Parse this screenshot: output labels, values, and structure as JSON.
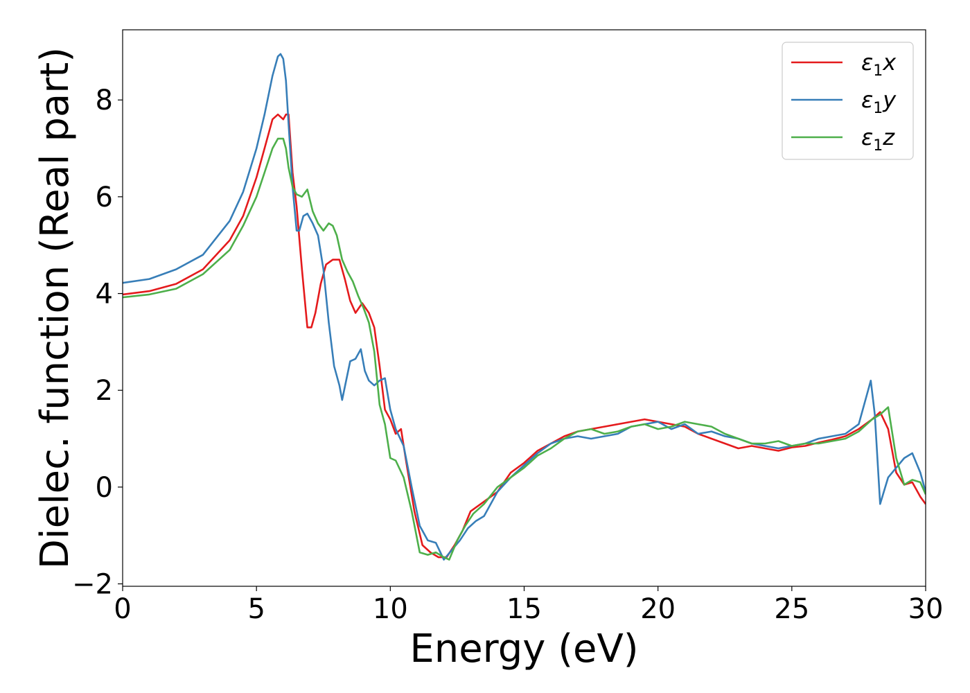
{
  "chart_data": {
    "type": "line",
    "xlabel": "Energy (eV)",
    "ylabel": "Dielec. function (Real part)",
    "xlim": [
      0,
      30
    ],
    "ylim": [
      -2.05,
      9.45
    ],
    "xticks": [
      0,
      5,
      10,
      15,
      20,
      25,
      30
    ],
    "xtick_labels": [
      "0",
      "5",
      "10",
      "15",
      "20",
      "25",
      "30"
    ],
    "yticks": [
      -2,
      0,
      2,
      4,
      6,
      8
    ],
    "ytick_labels": [
      "−2",
      "0",
      "2",
      "4",
      "6",
      "8"
    ],
    "grid": false,
    "legend_position": "top-right",
    "series": [
      {
        "name": "ε1x",
        "legend_main": "ε",
        "legend_sub": "1",
        "legend_var": "x",
        "color": "#e41a1c",
        "x": [
          0,
          1,
          2,
          3,
          4,
          4.5,
          5,
          5.3,
          5.6,
          5.8,
          6.0,
          6.1,
          6.2,
          6.35,
          6.5,
          6.7,
          6.9,
          7.05,
          7.2,
          7.4,
          7.6,
          7.85,
          8.1,
          8.3,
          8.5,
          8.7,
          8.95,
          9.2,
          9.4,
          9.6,
          9.8,
          10.0,
          10.2,
          10.4,
          10.6,
          10.9,
          11.2,
          11.5,
          11.8,
          12.1,
          12.4,
          12.7,
          13.0,
          13.5,
          14.0,
          14.5,
          15.0,
          15.5,
          16.0,
          16.5,
          17.0,
          17.5,
          18.0,
          18.5,
          19.0,
          19.5,
          20.0,
          20.5,
          21.0,
          21.5,
          22.0,
          22.5,
          23.0,
          23.5,
          24.0,
          24.5,
          25.0,
          25.5,
          26.0,
          26.5,
          27.0,
          27.5,
          28.0,
          28.3,
          28.6,
          28.9,
          29.2,
          29.5,
          29.8,
          30.0
        ],
        "y": [
          3.98,
          4.05,
          4.2,
          4.5,
          5.1,
          5.6,
          6.4,
          7.0,
          7.6,
          7.7,
          7.6,
          7.7,
          7.7,
          6.5,
          5.8,
          4.5,
          3.3,
          3.3,
          3.6,
          4.2,
          4.6,
          4.7,
          4.7,
          4.3,
          3.85,
          3.6,
          3.8,
          3.6,
          3.3,
          2.5,
          1.6,
          1.4,
          1.1,
          1.2,
          0.5,
          -0.5,
          -1.2,
          -1.35,
          -1.45,
          -1.45,
          -1.2,
          -0.9,
          -0.5,
          -0.3,
          -0.1,
          0.3,
          0.5,
          0.75,
          0.9,
          1.05,
          1.15,
          1.2,
          1.25,
          1.3,
          1.35,
          1.4,
          1.35,
          1.3,
          1.25,
          1.1,
          1.0,
          0.9,
          0.8,
          0.85,
          0.8,
          0.75,
          0.82,
          0.85,
          0.92,
          0.98,
          1.05,
          1.2,
          1.4,
          1.55,
          1.2,
          0.3,
          0.05,
          0.1,
          -0.2,
          -0.35
        ]
      },
      {
        "name": "ε1y",
        "legend_main": "ε",
        "legend_sub": "1",
        "legend_var": "y",
        "color": "#377eb8",
        "x": [
          0,
          1,
          2,
          3,
          4,
          4.5,
          5,
          5.3,
          5.6,
          5.8,
          5.9,
          6.0,
          6.1,
          6.2,
          6.35,
          6.5,
          6.6,
          6.75,
          6.9,
          7.1,
          7.3,
          7.5,
          7.7,
          7.9,
          8.1,
          8.2,
          8.35,
          8.5,
          8.7,
          8.9,
          9.05,
          9.2,
          9.4,
          9.6,
          9.8,
          10.0,
          10.2,
          10.5,
          10.8,
          11.1,
          11.4,
          11.7,
          12.0,
          12.3,
          12.6,
          12.9,
          13.2,
          13.5,
          14.0,
          14.5,
          15.0,
          15.5,
          16.0,
          16.5,
          17.0,
          17.5,
          18.0,
          18.5,
          19.0,
          19.5,
          20.0,
          20.5,
          21.0,
          21.5,
          22.0,
          22.5,
          23.0,
          23.5,
          24.0,
          24.5,
          25.0,
          25.5,
          26.0,
          26.5,
          27.0,
          27.5,
          27.8,
          27.95,
          28.1,
          28.3,
          28.6,
          28.9,
          29.2,
          29.5,
          29.8,
          30.0
        ],
        "y": [
          4.22,
          4.3,
          4.5,
          4.8,
          5.5,
          6.1,
          7.0,
          7.7,
          8.5,
          8.9,
          8.95,
          8.85,
          8.4,
          7.5,
          6.2,
          5.3,
          5.3,
          5.6,
          5.65,
          5.45,
          5.2,
          4.5,
          3.4,
          2.5,
          2.1,
          1.8,
          2.2,
          2.6,
          2.65,
          2.85,
          2.4,
          2.2,
          2.1,
          2.2,
          2.25,
          1.6,
          1.2,
          0.85,
          0.0,
          -0.8,
          -1.1,
          -1.15,
          -1.5,
          -1.3,
          -1.1,
          -0.85,
          -0.7,
          -0.6,
          -0.1,
          0.2,
          0.45,
          0.7,
          0.9,
          1.0,
          1.05,
          1.0,
          1.05,
          1.1,
          1.25,
          1.3,
          1.35,
          1.2,
          1.3,
          1.1,
          1.15,
          1.05,
          1.0,
          0.9,
          0.85,
          0.8,
          0.85,
          0.9,
          1.0,
          1.05,
          1.1,
          1.3,
          1.9,
          2.2,
          1.5,
          -0.35,
          0.2,
          0.4,
          0.6,
          0.7,
          0.3,
          -0.1
        ]
      },
      {
        "name": "ε1z",
        "legend_main": "ε",
        "legend_sub": "1",
        "legend_var": "z",
        "color": "#4daf4a",
        "x": [
          0,
          1,
          2,
          3,
          4,
          4.5,
          5,
          5.3,
          5.6,
          5.8,
          6.0,
          6.1,
          6.2,
          6.35,
          6.5,
          6.7,
          6.9,
          7.1,
          7.3,
          7.5,
          7.7,
          7.85,
          8.0,
          8.2,
          8.4,
          8.6,
          8.8,
          9.0,
          9.2,
          9.4,
          9.6,
          9.8,
          10.0,
          10.2,
          10.5,
          10.8,
          11.1,
          11.4,
          11.7,
          12.0,
          12.2,
          12.5,
          12.8,
          13.1,
          13.5,
          14.0,
          14.5,
          15.0,
          15.5,
          16.0,
          16.5,
          17.0,
          17.5,
          18.0,
          18.5,
          19.0,
          19.5,
          20.0,
          20.5,
          21.0,
          21.5,
          22.0,
          22.5,
          23.0,
          23.5,
          24.0,
          24.5,
          25.0,
          25.5,
          26.0,
          26.5,
          27.0,
          27.5,
          28.0,
          28.3,
          28.6,
          28.9,
          29.2,
          29.5,
          29.8,
          30.0
        ],
        "y": [
          3.92,
          3.98,
          4.1,
          4.4,
          4.9,
          5.4,
          6.0,
          6.5,
          7.0,
          7.2,
          7.2,
          7.0,
          6.6,
          6.2,
          6.05,
          6.0,
          6.15,
          5.7,
          5.45,
          5.3,
          5.45,
          5.4,
          5.2,
          4.7,
          4.45,
          4.25,
          3.95,
          3.7,
          3.4,
          2.8,
          1.7,
          1.3,
          0.6,
          0.55,
          0.2,
          -0.5,
          -1.35,
          -1.4,
          -1.35,
          -1.45,
          -1.5,
          -1.1,
          -0.8,
          -0.55,
          -0.35,
          0.0,
          0.2,
          0.4,
          0.65,
          0.8,
          1.0,
          1.15,
          1.2,
          1.1,
          1.15,
          1.25,
          1.3,
          1.2,
          1.25,
          1.35,
          1.3,
          1.25,
          1.1,
          1.0,
          0.9,
          0.9,
          0.95,
          0.85,
          0.9,
          0.9,
          0.95,
          1.0,
          1.15,
          1.4,
          1.5,
          1.65,
          0.6,
          0.05,
          0.15,
          0.1,
          -0.15
        ]
      }
    ]
  }
}
